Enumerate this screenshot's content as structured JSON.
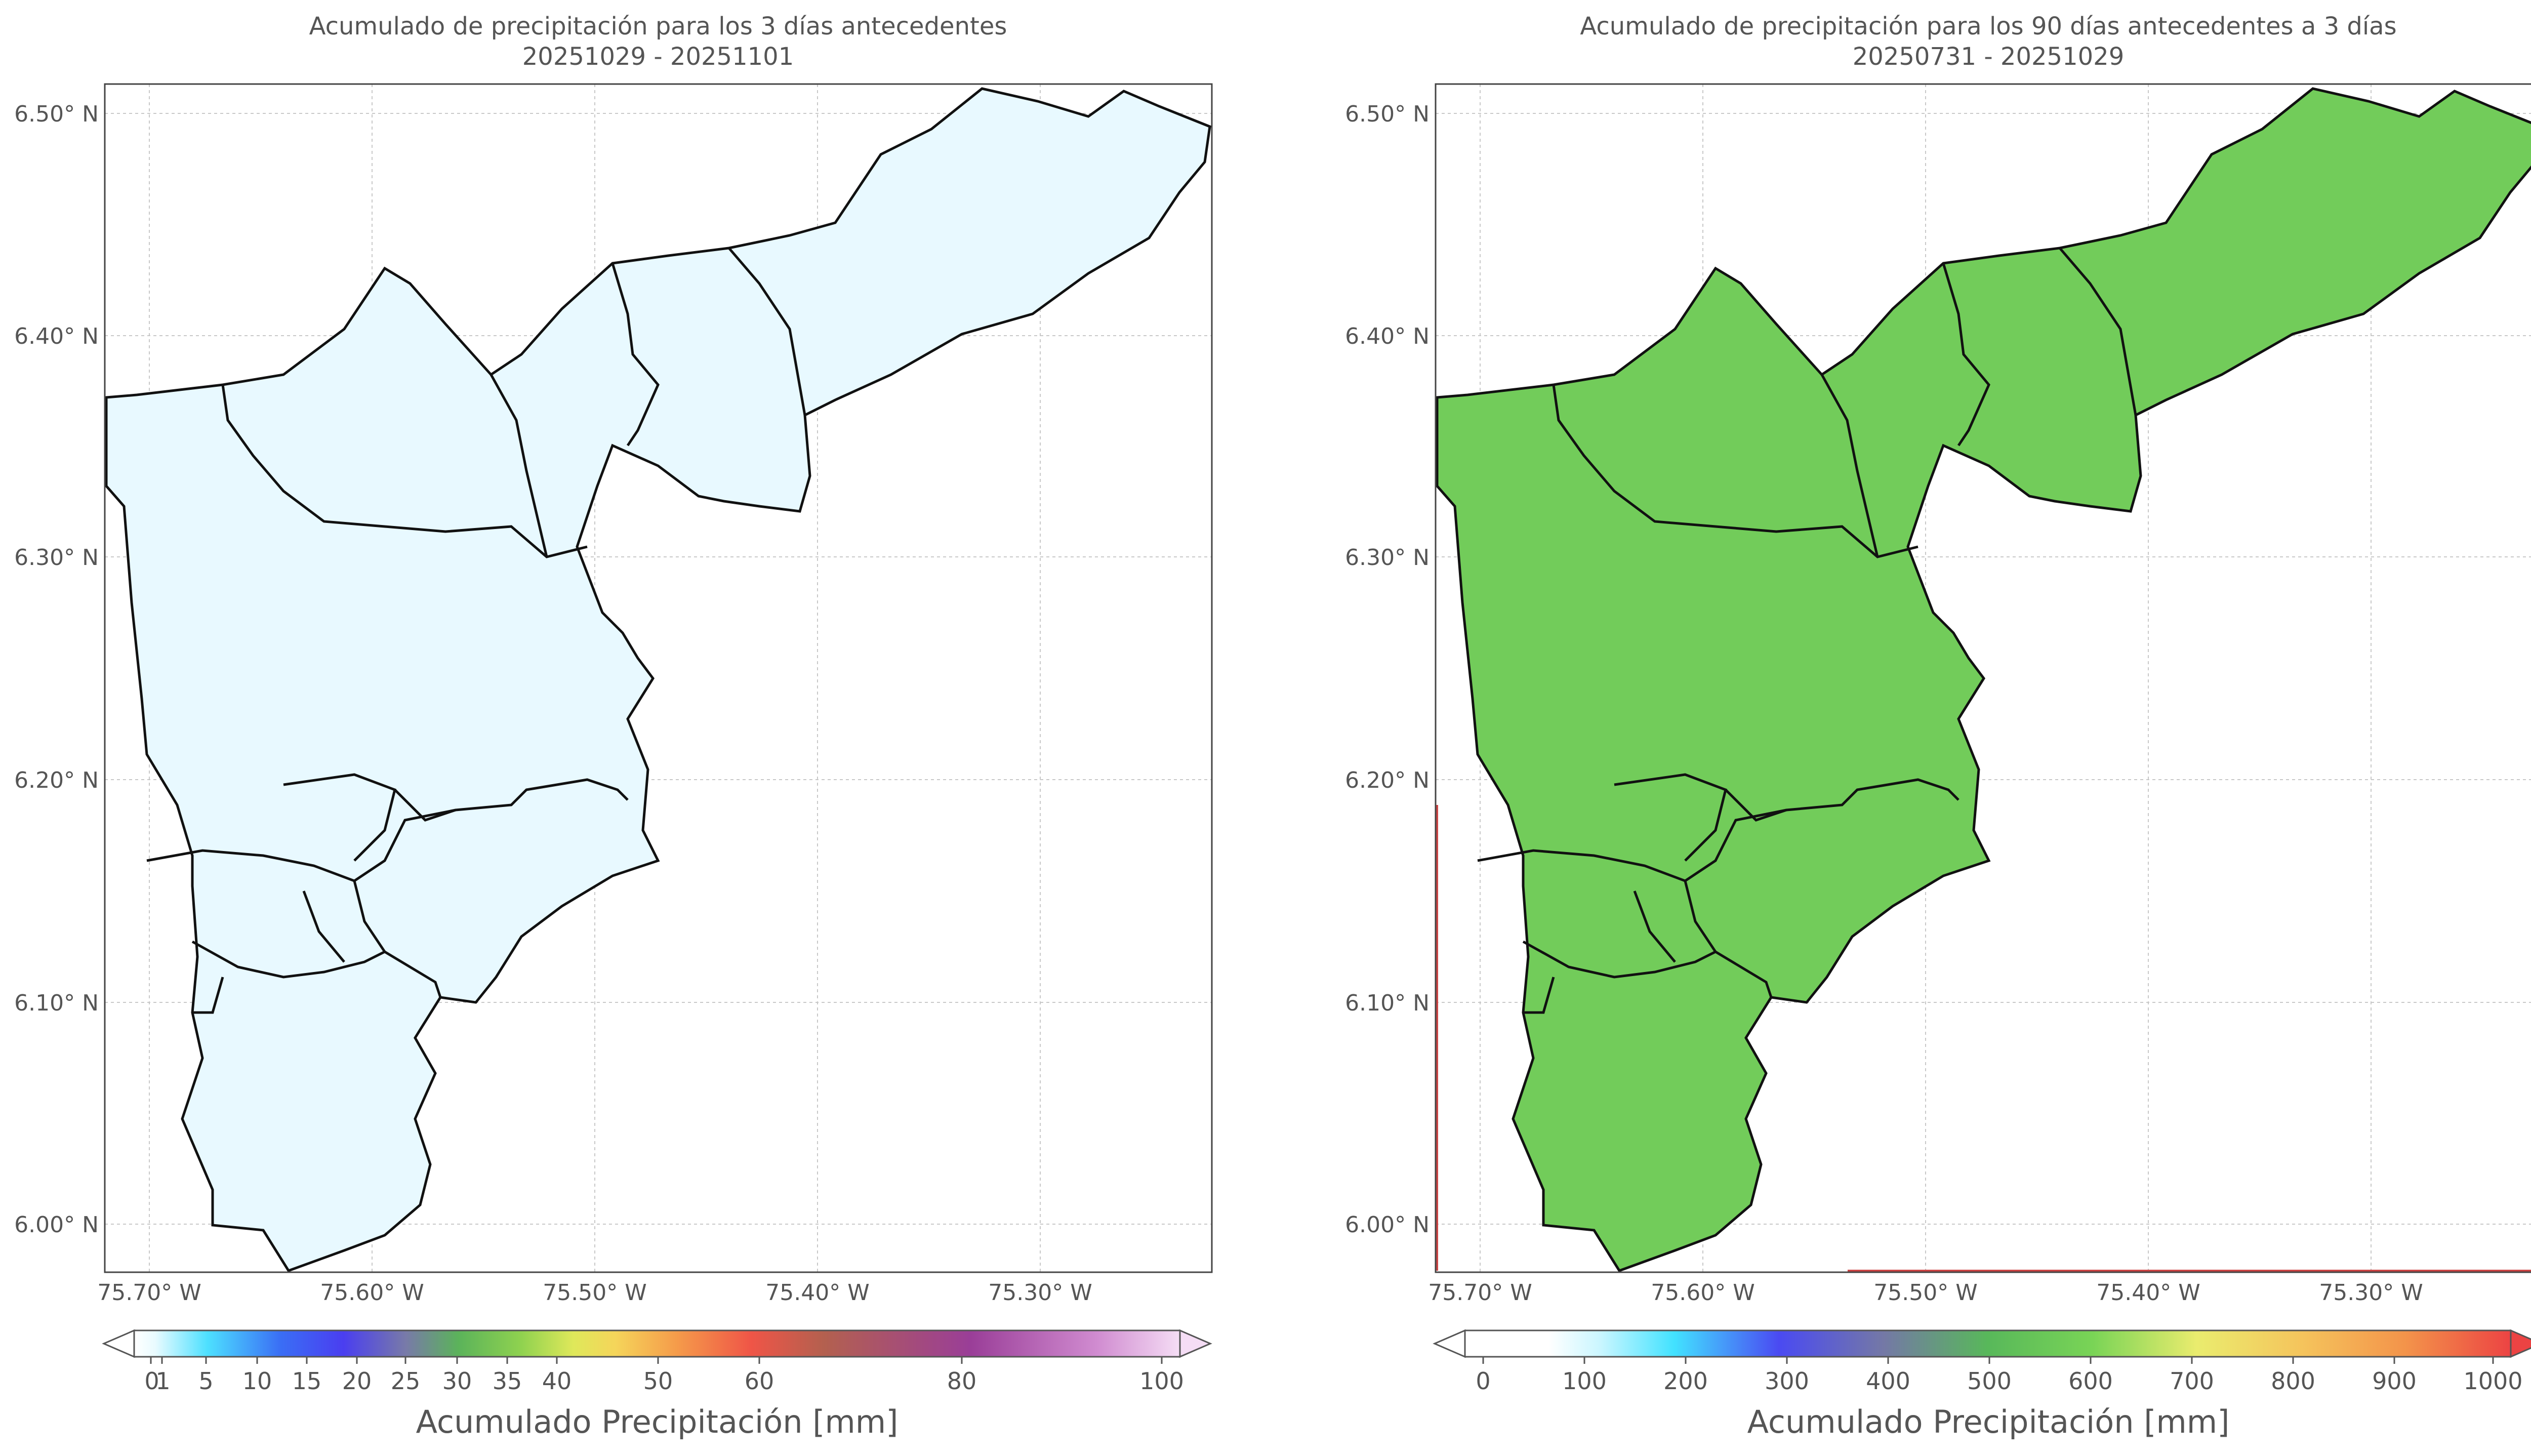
{
  "left_panel": {
    "title_line1": "Acumulado de precipitación para los 3 días antecedentes",
    "title_line2": "20251029 - 20251101",
    "lat_labels": [
      "6.50° N",
      "6.40° N",
      "6.30° N",
      "6.20° N",
      "6.10° N",
      "6.00° N"
    ],
    "lon_labels": [
      "75.70° W",
      "75.60° W",
      "75.50° W",
      "75.40° W",
      "75.30° W"
    ],
    "colorbar": {
      "ticks": [
        "0",
        "1",
        "5",
        "10",
        "15",
        "20",
        "25",
        "30",
        "35",
        "40",
        "50",
        "60",
        "80",
        "100"
      ],
      "label": "Acumulado Precipitación [mm]",
      "colors": [
        "#ffffff",
        "#d8f6ff",
        "#4dd8ff",
        "#3a64f5",
        "#4d3ff0",
        "#7a79a8",
        "#5bb35a",
        "#8fd24f",
        "#c9e85a",
        "#f2e25a",
        "#f5a84a",
        "#ef5547",
        "#b0604d",
        "#9b3f9a",
        "#d79ad6",
        "#f5ddf5"
      ]
    }
  },
  "right_panel": {
    "title_line1": "Acumulado de precipitación para los 90 días antecedentes a 3 días",
    "title_line2": "20250731 - 20251029",
    "lat_labels": [
      "6.50° N",
      "6.40° N",
      "6.30° N",
      "6.20° N",
      "6.10° N",
      "6.00° N"
    ],
    "lon_labels": [
      "75.70° W",
      "75.60° W",
      "75.50° W",
      "75.40° W",
      "75.30° W"
    ],
    "colorbar": {
      "ticks": [
        "0",
        "100",
        "200",
        "300",
        "400",
        "500",
        "600",
        "700",
        "800",
        "900",
        "1000"
      ],
      "label": "Acumulado Precipitación [mm]",
      "colors": [
        "#ffffff",
        "#ffffff",
        "#45e6ff",
        "#3fb0f5",
        "#4a4af2",
        "#7276a8",
        "#58b85a",
        "#7fd556",
        "#e9ec6e",
        "#f5c95d",
        "#f39a4a",
        "#ec4343"
      ]
    }
  },
  "icons": [
    "colorbar-min-arrow-icon",
    "colorbar-max-arrow-icon"
  ]
}
